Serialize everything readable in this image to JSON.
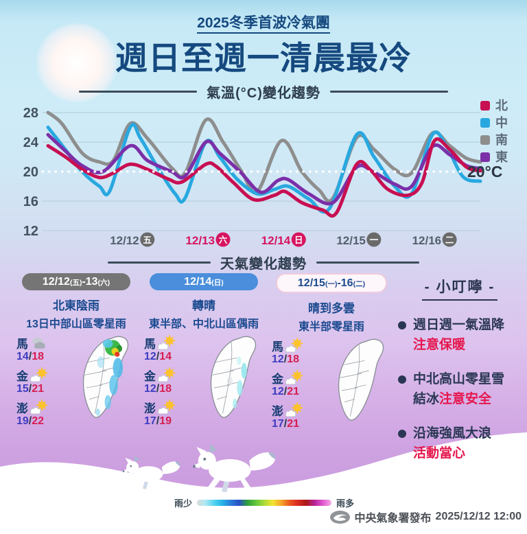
{
  "header": {
    "kicker": "2025冬季首波冷氣團",
    "title": "週日至週一清晨最冷"
  },
  "chart_data": {
    "type": "line",
    "title": "氣溫(°C)變化趨勢",
    "ylim": [
      12,
      29
    ],
    "yticks": [
      28,
      24,
      20,
      16,
      12
    ],
    "reference_line": {
      "y": 20,
      "label": "20°C"
    },
    "x_ticks": [
      {
        "date": "12/12",
        "weekday": "五",
        "frac": 0.198,
        "highlight": false
      },
      {
        "date": "12/13",
        "weekday": "六",
        "frac": 0.373,
        "highlight": true
      },
      {
        "date": "12/14",
        "weekday": "日",
        "frac": 0.548,
        "highlight": true
      },
      {
        "date": "12/15",
        "weekday": "一",
        "frac": 0.722,
        "highlight": false
      },
      {
        "date": "12/16",
        "weekday": "二",
        "frac": 0.897,
        "highlight": false
      }
    ],
    "draw_order": [
      "南",
      "中",
      "東",
      "北"
    ],
    "series": [
      {
        "name": "北",
        "region": "north",
        "color": "#c80f52",
        "points": [
          [
            0,
            23.5
          ],
          [
            0.04,
            22
          ],
          [
            0.079,
            20.3
          ],
          [
            0.119,
            19.2
          ],
          [
            0.151,
            19.8
          ],
          [
            0.19,
            21
          ],
          [
            0.23,
            20.3
          ],
          [
            0.278,
            19
          ],
          [
            0.31,
            18.6
          ],
          [
            0.365,
            21
          ],
          [
            0.389,
            20.7
          ],
          [
            0.429,
            18.5
          ],
          [
            0.476,
            16.2
          ],
          [
            0.524,
            16.8
          ],
          [
            0.548,
            17.3
          ],
          [
            0.587,
            15.8
          ],
          [
            0.635,
            14.8
          ],
          [
            0.667,
            14.4
          ],
          [
            0.714,
            21
          ],
          [
            0.746,
            20.2
          ],
          [
            0.786,
            17.6
          ],
          [
            0.833,
            16.8
          ],
          [
            0.865,
            18.5
          ],
          [
            0.894,
            24.2
          ],
          [
            0.929,
            23
          ],
          [
            0.968,
            20.6
          ],
          [
            1,
            20.1
          ]
        ]
      },
      {
        "name": "中",
        "region": "central",
        "color": "#29a8e0",
        "points": [
          [
            0,
            26
          ],
          [
            0.04,
            23
          ],
          [
            0.079,
            20
          ],
          [
            0.119,
            18
          ],
          [
            0.143,
            17.4
          ],
          [
            0.19,
            26
          ],
          [
            0.214,
            24.5
          ],
          [
            0.254,
            20.5
          ],
          [
            0.294,
            17
          ],
          [
            0.317,
            16.4
          ],
          [
            0.365,
            24
          ],
          [
            0.397,
            22
          ],
          [
            0.437,
            19
          ],
          [
            0.484,
            17
          ],
          [
            0.524,
            17.6
          ],
          [
            0.556,
            18
          ],
          [
            0.603,
            16.3
          ],
          [
            0.651,
            15
          ],
          [
            0.714,
            25
          ],
          [
            0.754,
            22
          ],
          [
            0.802,
            18
          ],
          [
            0.841,
            17
          ],
          [
            0.889,
            25
          ],
          [
            0.921,
            23.5
          ],
          [
            0.96,
            19.3
          ],
          [
            1,
            18.7
          ]
        ]
      },
      {
        "name": "南",
        "region": "south",
        "color": "#8e8e8e",
        "points": [
          [
            0,
            28
          ],
          [
            0.032,
            26.5
          ],
          [
            0.079,
            22.5
          ],
          [
            0.119,
            21.3
          ],
          [
            0.151,
            21.5
          ],
          [
            0.19,
            26.5
          ],
          [
            0.23,
            24.5
          ],
          [
            0.286,
            20.5
          ],
          [
            0.317,
            19.8
          ],
          [
            0.365,
            27
          ],
          [
            0.405,
            24
          ],
          [
            0.448,
            20
          ],
          [
            0.484,
            17.3
          ],
          [
            0.54,
            24.2
          ],
          [
            0.587,
            20
          ],
          [
            0.627,
            17.5
          ],
          [
            0.659,
            16.4
          ],
          [
            0.714,
            24.6
          ],
          [
            0.754,
            23
          ],
          [
            0.802,
            20.3
          ],
          [
            0.841,
            19.8
          ],
          [
            0.889,
            25.2
          ],
          [
            0.929,
            23.5
          ],
          [
            0.968,
            21.8
          ],
          [
            1,
            21.3
          ]
        ]
      },
      {
        "name": "東",
        "region": "east",
        "color": "#7b2fa8",
        "points": [
          [
            0,
            25
          ],
          [
            0.04,
            22.8
          ],
          [
            0.079,
            20.8
          ],
          [
            0.127,
            20
          ],
          [
            0.19,
            23.5
          ],
          [
            0.23,
            21.5
          ],
          [
            0.286,
            20
          ],
          [
            0.317,
            19.4
          ],
          [
            0.365,
            24
          ],
          [
            0.397,
            22.5
          ],
          [
            0.444,
            20
          ],
          [
            0.492,
            17.2
          ],
          [
            0.532,
            18.8
          ],
          [
            0.556,
            18.9
          ],
          [
            0.603,
            17
          ],
          [
            0.659,
            15.8
          ],
          [
            0.714,
            20.6
          ],
          [
            0.754,
            19.9
          ],
          [
            0.802,
            18.3
          ],
          [
            0.841,
            18
          ],
          [
            0.889,
            23.4
          ],
          [
            0.929,
            22.3
          ],
          [
            0.968,
            20.8
          ],
          [
            1,
            20.4
          ]
        ]
      }
    ],
    "legend_position": "right",
    "tick_colors": {
      "normal": "#53606c",
      "highlight": "#d6145f",
      "circle_normal": "#6a6a6a"
    }
  },
  "weather_section": {
    "divider": "天氣變化趨勢"
  },
  "forecast_columns": [
    {
      "pill": {
        "segments": [
          {
            "t": "12/12"
          },
          {
            "t": "(五)",
            "small": true
          },
          {
            "t": "-13"
          },
          {
            "t": "(六)",
            "small": true
          }
        ],
        "bg": "#757575",
        "color": "#ffffff",
        "border": ""
      },
      "headline1": "北東陰雨",
      "headline2": "13日中部山區零星雨",
      "stations": [
        {
          "name": "馬",
          "icon": "cloudy",
          "low": "14",
          "high": "18"
        },
        {
          "name": "金",
          "icon": "partly-sunny",
          "low": "15",
          "high": "21"
        },
        {
          "name": "澎",
          "icon": "partly-sunny",
          "low": "19",
          "high": "22"
        }
      ],
      "rain_overlay": "heavy-northeast"
    },
    {
      "pill": {
        "segments": [
          {
            "t": "12/14"
          },
          {
            "t": "(日)",
            "small": true
          }
        ],
        "bg": "#4a8edc",
        "color": "#ffffff",
        "border": ""
      },
      "headline1": "轉晴",
      "headline2": "東半部、中北山區偶雨",
      "stations": [
        {
          "name": "馬",
          "icon": "partly-sunny",
          "low": "12",
          "high": "14"
        },
        {
          "name": "金",
          "icon": "partly-sunny",
          "low": "12",
          "high": "18"
        },
        {
          "name": "澎",
          "icon": "partly-sunny",
          "low": "17",
          "high": "19"
        }
      ],
      "rain_overlay": "light-east"
    },
    {
      "pill": {
        "segments": [
          {
            "t": "12/15"
          },
          {
            "t": "(一)",
            "small": true
          },
          {
            "t": "-16"
          },
          {
            "t": "(二)",
            "small": true
          }
        ],
        "bg": "#fdf6fa",
        "color": "#1d4b8f",
        "border": "#f2cadd"
      },
      "headline1": "晴到多雲",
      "headline2": "東半部零星雨",
      "stations": [
        {
          "name": "馬",
          "icon": "partly-sunny",
          "low": "12",
          "high": "18"
        },
        {
          "name": "金",
          "icon": "partly-sunny",
          "low": "12",
          "high": "21"
        },
        {
          "name": "澎",
          "icon": "partly-sunny",
          "low": "17",
          "high": "21"
        }
      ],
      "rain_overlay": "none"
    }
  ],
  "tips": {
    "title": "- 小叮嚀 -",
    "items": [
      {
        "lines": [
          [
            {
              "t": "週日週一氣溫降",
              "c": "navy"
            }
          ],
          [
            {
              "t": "注意保暖",
              "c": "red"
            }
          ]
        ]
      },
      {
        "lines": [
          [
            {
              "t": "中北高山零星雪",
              "c": "navy"
            }
          ],
          [
            {
              "t": "結冰",
              "c": "navy"
            },
            {
              "t": "注意安全",
              "c": "red"
            }
          ]
        ]
      },
      {
        "lines": [
          [
            {
              "t": "沿海強風大浪",
              "c": "navy"
            }
          ],
          [
            {
              "t": "活動當心",
              "c": "red"
            }
          ]
        ]
      }
    ]
  },
  "rain_scale": {
    "low": "雨少",
    "high": "雨多",
    "colors": [
      "#d9d9d9",
      "#aee9f2",
      "#57d4f0",
      "#28b4e8",
      "#2a7fd8",
      "#2a4fc8",
      "#2f9e3a",
      "#63c53f",
      "#aadc38",
      "#f2e431",
      "#f5a82b",
      "#ea5a22",
      "#d92a20",
      "#aa1a16",
      "#b8239a",
      "#e25ad0",
      "#f4abe8"
    ]
  },
  "footer": {
    "agency": "中央氣象署發布",
    "datetime": "2025/12/12 12:00"
  }
}
